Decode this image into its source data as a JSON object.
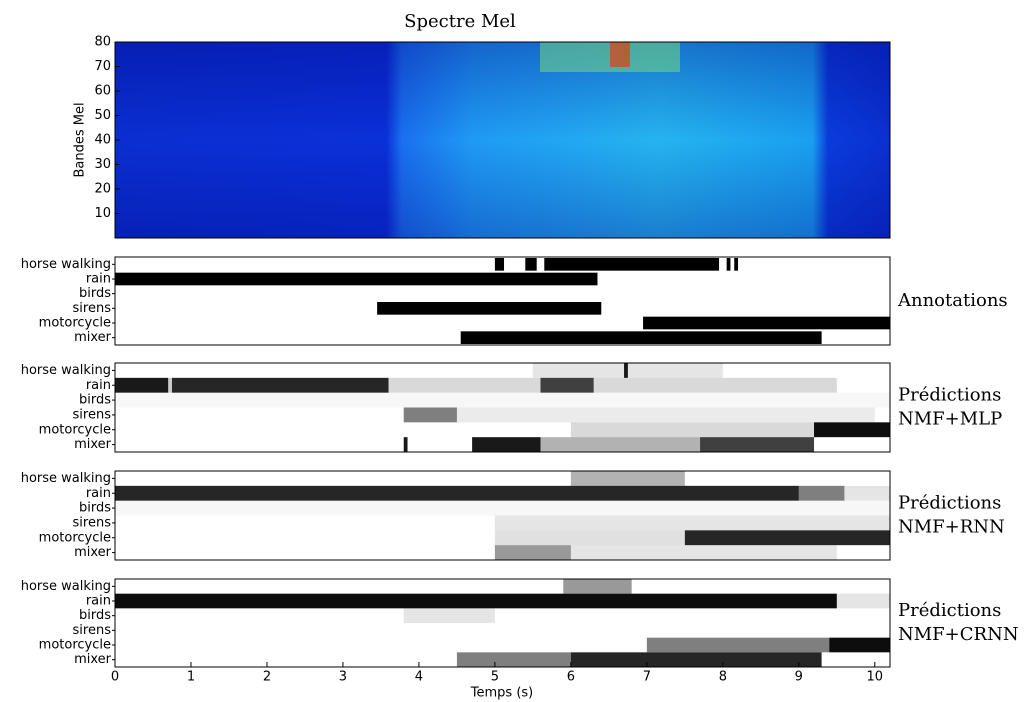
{
  "chart_data": [
    {
      "type": "spectrogram",
      "title": "Spectre Mel",
      "y_label": "Bandes Mel",
      "ylim": [
        0,
        80
      ],
      "yticks": [
        10,
        20,
        30,
        40,
        50,
        60,
        70,
        80
      ],
      "xlim": [
        0,
        10.2
      ]
    },
    {
      "type": "timeline",
      "label": [
        "Annotations"
      ],
      "xlim": [
        0,
        10.2
      ],
      "categories": [
        "horse walking",
        "rain",
        "birds",
        "sirens",
        "motorcycle",
        "mixer"
      ],
      "segments": [
        [
          [
            5.0,
            5.12
          ],
          [
            5.4,
            5.55
          ],
          [
            5.65,
            7.95
          ],
          [
            8.05,
            8.1
          ],
          [
            8.15,
            8.2
          ]
        ],
        [
          [
            0,
            6.35
          ]
        ],
        [],
        [
          [
            3.45,
            6.4
          ]
        ],
        [
          [
            6.95,
            10.2
          ]
        ],
        [
          [
            4.55,
            9.3
          ]
        ]
      ]
    },
    {
      "type": "heatmap",
      "label": [
        "Prédictions",
        "NMF+MLP"
      ],
      "xlim": [
        0,
        10.2
      ],
      "categories": [
        "horse walking",
        "rain",
        "birds",
        "sirens",
        "motorcycle",
        "mixer"
      ],
      "rows": [
        [
          [
            5.5,
            8,
            0.1
          ],
          [
            6.7,
            6.75,
            0.9
          ]
        ],
        [
          [
            0,
            0.7,
            0.9
          ],
          [
            0.7,
            0.75,
            0.2
          ],
          [
            0.75,
            3.6,
            0.85
          ],
          [
            3.6,
            5.6,
            0.15
          ],
          [
            5.6,
            6.3,
            0.75
          ],
          [
            6.3,
            9.5,
            0.15
          ]
        ],
        [
          [
            0,
            10.2,
            0.03
          ]
        ],
        [
          [
            3.8,
            4.5,
            0.5
          ],
          [
            4.5,
            10,
            0.08
          ]
        ],
        [
          [
            6,
            9.2,
            0.15
          ],
          [
            9.2,
            10.2,
            0.95
          ]
        ],
        [
          [
            3.8,
            3.85,
            0.9
          ],
          [
            4.7,
            5.6,
            0.9
          ],
          [
            5.6,
            7.7,
            0.3
          ],
          [
            7.7,
            9.2,
            0.75
          ]
        ]
      ]
    },
    {
      "type": "heatmap",
      "label": [
        "Prédictions",
        "NMF+RNN"
      ],
      "xlim": [
        0,
        10.2
      ],
      "categories": [
        "horse walking",
        "rain",
        "birds",
        "sirens",
        "motorcycle",
        "mixer"
      ],
      "rows": [
        [
          [
            6,
            7.5,
            0.3
          ]
        ],
        [
          [
            0,
            9,
            0.85
          ],
          [
            9,
            9.6,
            0.5
          ],
          [
            9.6,
            10.2,
            0.1
          ]
        ],
        [
          [
            0,
            10.2,
            0.03
          ]
        ],
        [
          [
            5,
            10.2,
            0.1
          ]
        ],
        [
          [
            5,
            7.5,
            0.12
          ],
          [
            7.5,
            10.2,
            0.85
          ]
        ],
        [
          [
            5,
            6,
            0.4
          ],
          [
            6,
            9.5,
            0.1
          ]
        ]
      ]
    },
    {
      "type": "heatmap",
      "label": [
        "Prédictions",
        "NMF+CRNN"
      ],
      "xlim": [
        0,
        10.2
      ],
      "xticks": [
        0,
        1,
        2,
        3,
        4,
        5,
        6,
        7,
        8,
        9,
        10
      ],
      "x_label": "Temps (s)",
      "categories": [
        "horse walking",
        "rain",
        "birds",
        "sirens",
        "motorcycle",
        "mixer"
      ],
      "rows": [
        [
          [
            5.9,
            6.8,
            0.4
          ]
        ],
        [
          [
            0,
            9.5,
            0.95
          ],
          [
            9.5,
            10.2,
            0.1
          ]
        ],
        [
          [
            3.8,
            5,
            0.1
          ]
        ],
        [],
        [
          [
            7,
            9.4,
            0.5
          ],
          [
            9.4,
            10.2,
            0.95
          ]
        ],
        [
          [
            4.5,
            6,
            0.5
          ],
          [
            6,
            9.3,
            0.85
          ]
        ]
      ]
    }
  ]
}
